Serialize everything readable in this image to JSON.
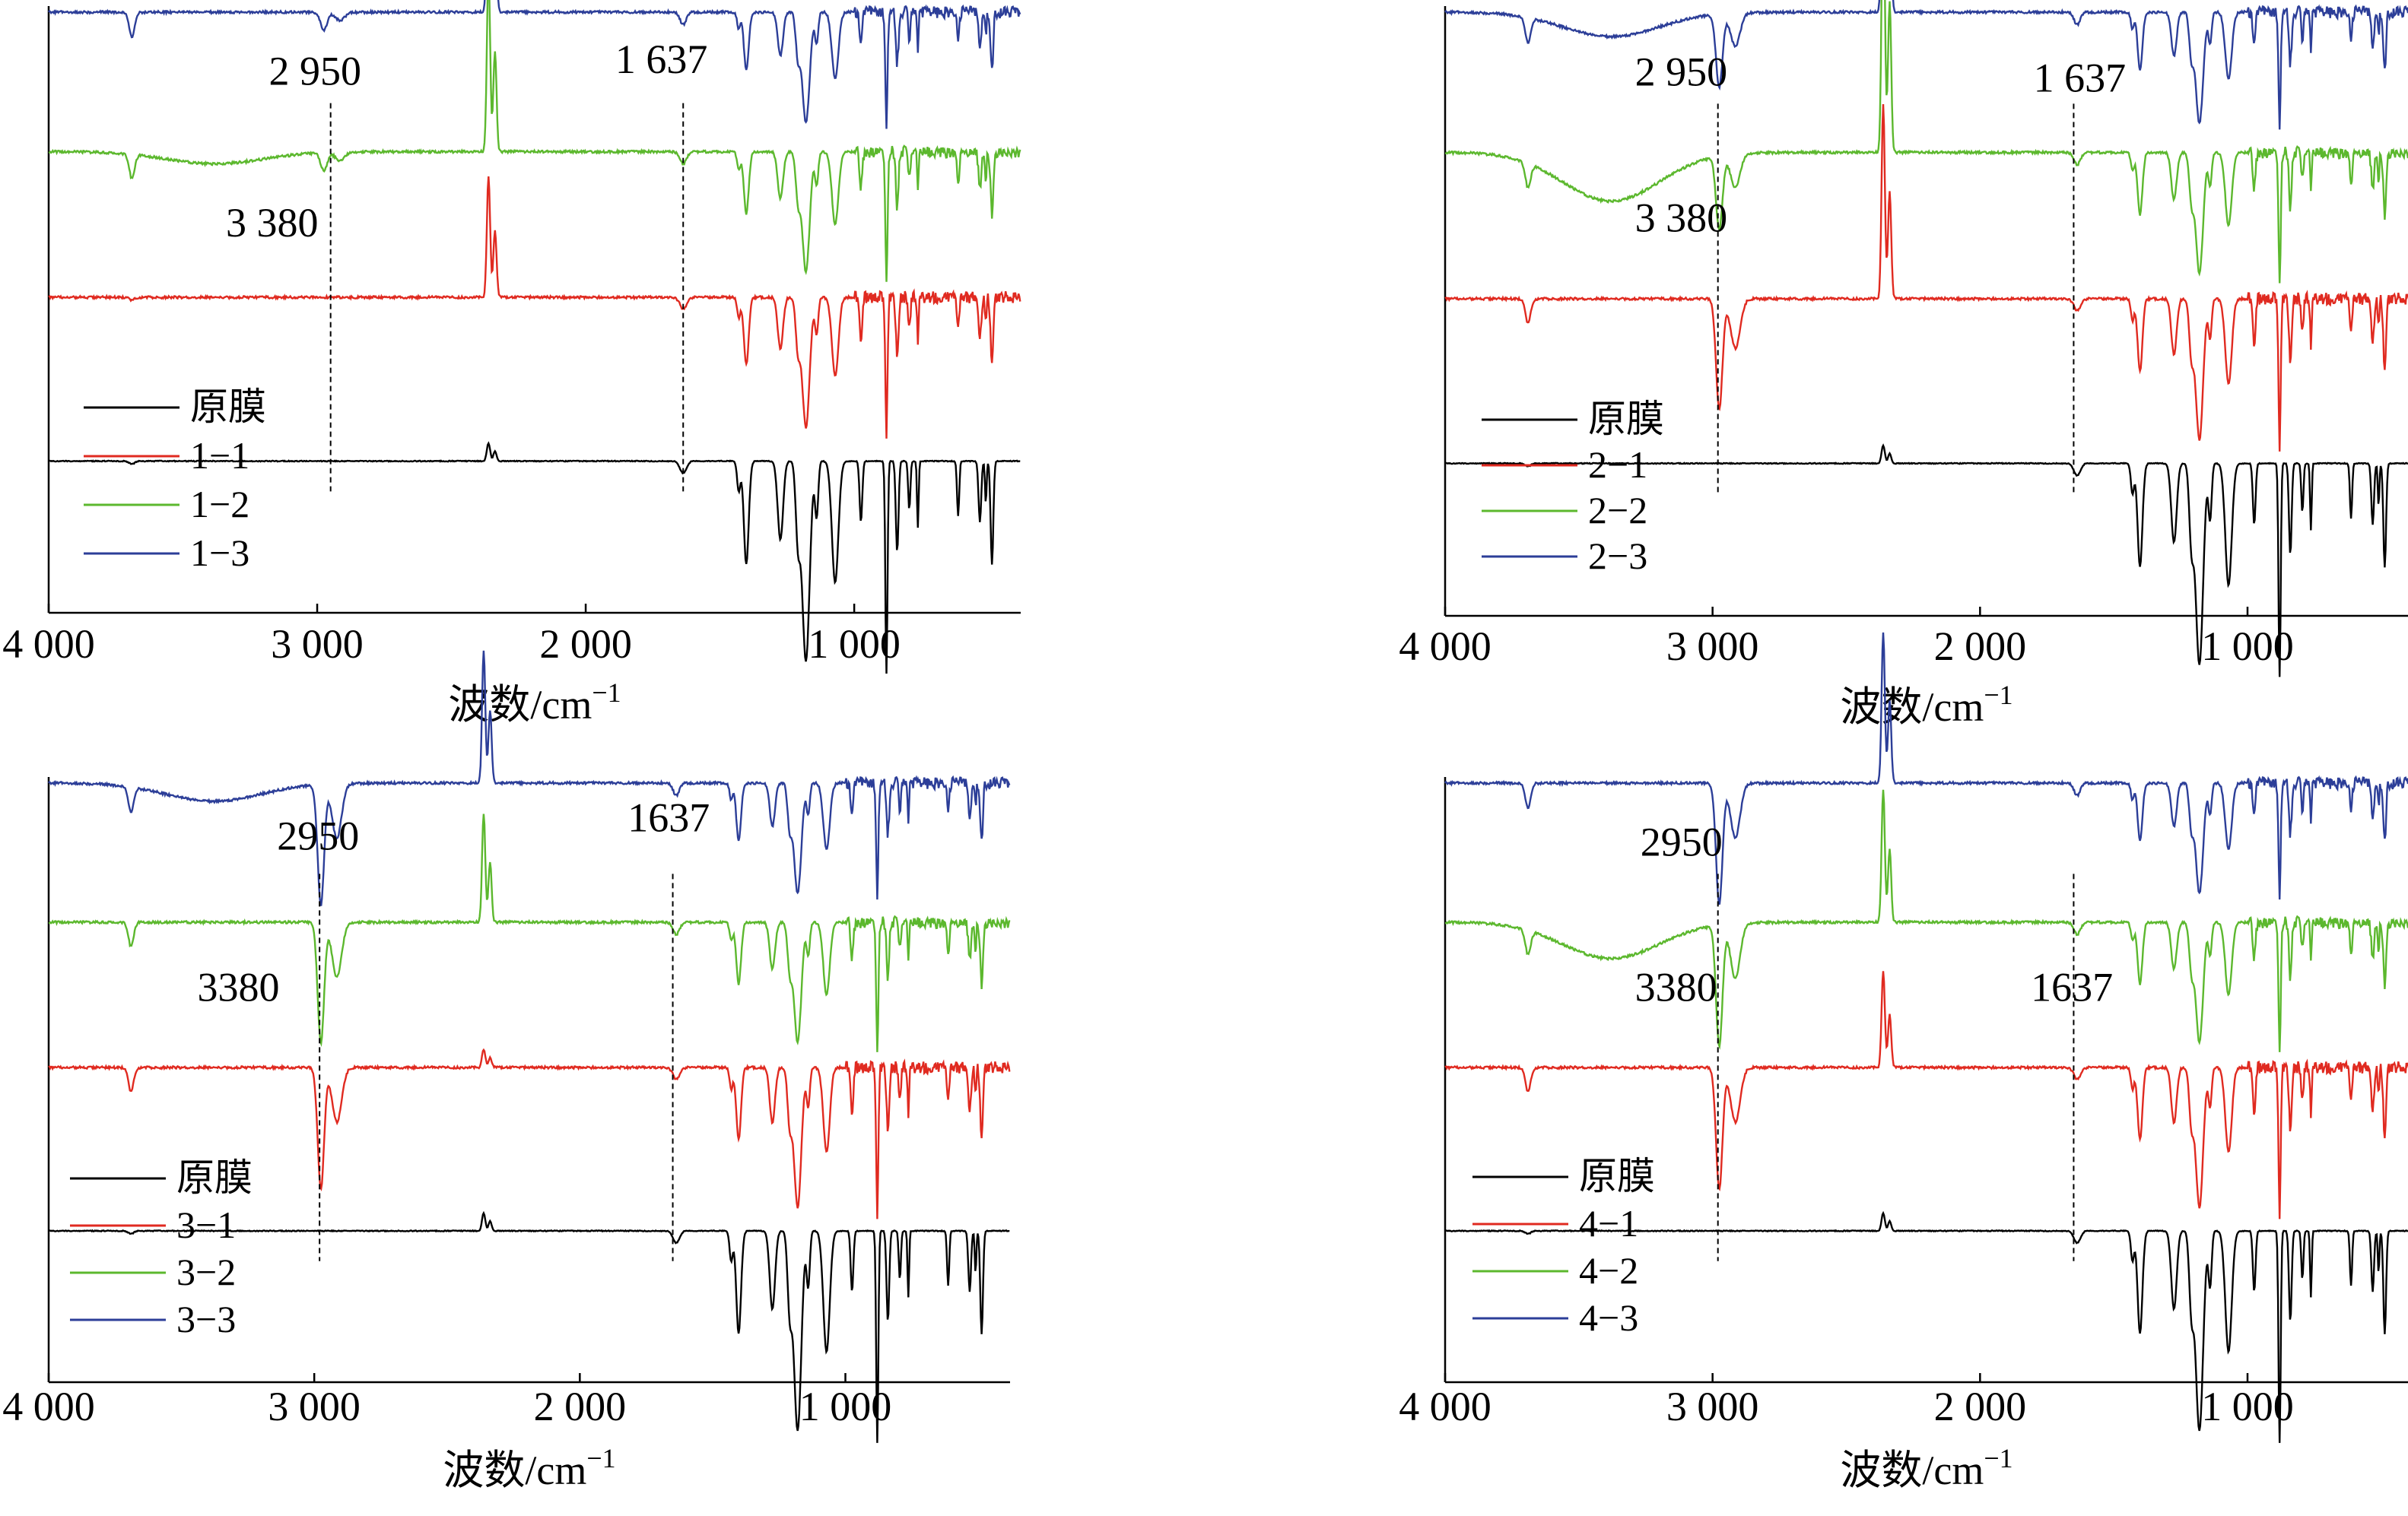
{
  "chart_data": [
    {
      "type": "line",
      "id": "p1",
      "xlim": [
        4000,
        380
      ],
      "x_reversed": true,
      "xlabel_main": "波数/cm",
      "xlabel_sup": "−1",
      "xticks": [
        4000,
        3000,
        2000,
        1000
      ],
      "xtick_labels": [
        "4 000",
        "3 000",
        "2 000",
        "1 000"
      ],
      "legend": {
        "position": "bottom-left",
        "entries": [
          "原膜",
          "1−1",
          "1−2",
          "1−3"
        ]
      },
      "series": [
        {
          "name": "原膜",
          "color": "#000000",
          "baseline": 0.25,
          "peak_scale": 1.0,
          "broad_3380": 0.0,
          "ch_2950": 0.0,
          "co2": 0.03
        },
        {
          "name": "1−1",
          "color": "#e02a20",
          "baseline": 0.52,
          "peak_scale": 0.65,
          "broad_3380": 0.0,
          "ch_2950": 0.0,
          "co2": 0.2
        },
        {
          "name": "1−2",
          "color": "#5cb82e",
          "baseline": 0.76,
          "peak_scale": 0.6,
          "broad_3380": 0.02,
          "ch_2950": 0.03,
          "co2": 0.3
        },
        {
          "name": "1−3",
          "color": "#2c3e98",
          "baseline": 0.99,
          "peak_scale": 0.55,
          "broad_3380": 0.0,
          "ch_2950": 0.03,
          "co2": 0.28
        }
      ],
      "vlines": [
        2950,
        1637
      ],
      "annotations": [
        {
          "text": "2 950",
          "x": 3180,
          "y": 0.87
        },
        {
          "text": "3 380",
          "x": 3340,
          "y": 0.62
        },
        {
          "text": "1 637",
          "x": 1890,
          "y": 0.89
        }
      ]
    },
    {
      "type": "line",
      "id": "p2",
      "xlim": [
        4000,
        400
      ],
      "x_reversed": true,
      "xlabel_main": "波数/cm",
      "xlabel_sup": "−1",
      "xticks": [
        4000,
        3000,
        2000,
        1000
      ],
      "xtick_labels": [
        "4 000",
        "3 000",
        "2 000",
        "1 000"
      ],
      "legend": {
        "position": "bottom-left",
        "entries": [
          "原膜",
          "2−1",
          "2−2",
          "2−3"
        ]
      },
      "series": [
        {
          "name": "原膜",
          "color": "#000000",
          "baseline": 0.25,
          "peak_scale": 1.0,
          "broad_3380": 0.0,
          "ch_2950": 0.0,
          "co2": 0.03
        },
        {
          "name": "2−1",
          "color": "#e02a20",
          "baseline": 0.52,
          "peak_scale": 0.7,
          "broad_3380": 0.0,
          "ch_2950": 0.18,
          "co2": 0.32
        },
        {
          "name": "2−2",
          "color": "#5cb82e",
          "baseline": 0.76,
          "peak_scale": 0.6,
          "broad_3380": 0.08,
          "ch_2950": 0.12,
          "co2": 0.45
        },
        {
          "name": "2−3",
          "color": "#2c3e98",
          "baseline": 0.99,
          "peak_scale": 0.55,
          "broad_3380": 0.04,
          "ch_2950": 0.12,
          "co2": 0.35
        }
      ],
      "vlines": [
        2980,
        1650
      ],
      "annotations": [
        {
          "text": "2 950",
          "x": 3290,
          "y": 0.87
        },
        {
          "text": "3 380",
          "x": 3290,
          "y": 0.63
        },
        {
          "text": "1 637",
          "x": 1800,
          "y": 0.86
        }
      ]
    },
    {
      "type": "line",
      "id": "p3",
      "xlim": [
        4000,
        380
      ],
      "x_reversed": true,
      "xlabel_main": "波数/cm",
      "xlabel_sup": "−1",
      "xticks": [
        4000,
        3000,
        2000,
        1000
      ],
      "xtick_labels": [
        "4 000",
        "3 000",
        "2 000",
        "1 000"
      ],
      "legend": {
        "position": "bottom-left",
        "entries": [
          "原膜",
          "3−1",
          "3−2",
          "3−3"
        ]
      },
      "series": [
        {
          "name": "原膜",
          "color": "#000000",
          "baseline": 0.25,
          "peak_scale": 1.0,
          "broad_3380": 0.0,
          "ch_2950": 0.0,
          "co2": 0.03
        },
        {
          "name": "3−1",
          "color": "#e02a20",
          "baseline": 0.52,
          "peak_scale": 0.7,
          "broad_3380": 0.0,
          "ch_2950": 0.2,
          "co2": 0.03
        },
        {
          "name": "3−2",
          "color": "#5cb82e",
          "baseline": 0.76,
          "peak_scale": 0.6,
          "broad_3380": 0.0,
          "ch_2950": 0.2,
          "co2": 0.18
        },
        {
          "name": "3−3",
          "color": "#2c3e98",
          "baseline": 0.99,
          "peak_scale": 0.55,
          "broad_3380": 0.03,
          "ch_2950": 0.2,
          "co2": 0.22
        }
      ],
      "vlines": [
        2980,
        1650
      ],
      "annotations": [
        {
          "text": "2950",
          "x": 3140,
          "y": 0.88
        },
        {
          "text": "3380",
          "x": 3440,
          "y": 0.63
        },
        {
          "text": "1637",
          "x": 1820,
          "y": 0.91
        }
      ]
    },
    {
      "type": "line",
      "id": "p4",
      "xlim": [
        4000,
        400
      ],
      "x_reversed": true,
      "xlabel_main": "波数/cm",
      "xlabel_sup": "−1",
      "xticks": [
        4000,
        3000,
        2000,
        1000
      ],
      "xtick_labels": [
        "4 000",
        "3 000",
        "2 000",
        "1 000"
      ],
      "legend": {
        "position": "bottom-left",
        "entries": [
          "原膜",
          "4−1",
          "4−2",
          "4−3"
        ]
      },
      "series": [
        {
          "name": "原膜",
          "color": "#000000",
          "baseline": 0.25,
          "peak_scale": 1.0,
          "broad_3380": 0.0,
          "ch_2950": 0.0,
          "co2": 0.03
        },
        {
          "name": "4−1",
          "color": "#e02a20",
          "baseline": 0.52,
          "peak_scale": 0.7,
          "broad_3380": 0.0,
          "ch_2950": 0.2,
          "co2": 0.16
        },
        {
          "name": "4−2",
          "color": "#5cb82e",
          "baseline": 0.76,
          "peak_scale": 0.6,
          "broad_3380": 0.06,
          "ch_2950": 0.2,
          "co2": 0.22
        },
        {
          "name": "4−3",
          "color": "#2c3e98",
          "baseline": 0.99,
          "peak_scale": 0.55,
          "broad_3380": 0.0,
          "ch_2950": 0.2,
          "co2": 0.25
        }
      ],
      "vlines": [
        2980,
        1650
      ],
      "annotations": [
        {
          "text": "2950",
          "x": 3270,
          "y": 0.87
        },
        {
          "text": "3380",
          "x": 3290,
          "y": 0.63
        },
        {
          "text": "1637",
          "x": 1810,
          "y": 0.63
        }
      ]
    }
  ]
}
